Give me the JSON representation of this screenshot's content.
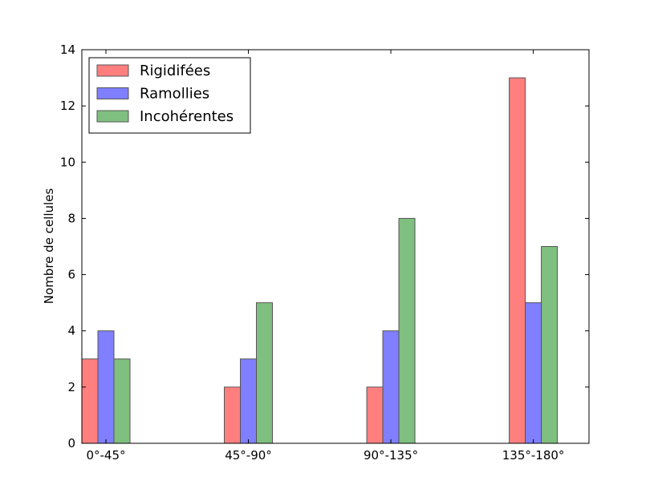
{
  "chart_data": {
    "type": "bar",
    "title": "",
    "xlabel": "",
    "ylabel": "Nombre de cellules",
    "ylim": [
      0,
      14
    ],
    "yticks": [
      0,
      2,
      4,
      6,
      8,
      10,
      12,
      14
    ],
    "categories": [
      "0°-45°",
      "45°-90°",
      "90°-135°",
      "135°-180°"
    ],
    "series": [
      {
        "name": "Rigidifées",
        "values": [
          3,
          2,
          2,
          13
        ],
        "color": "#ff7f7f"
      },
      {
        "name": "Ramollies",
        "values": [
          4,
          3,
          4,
          5
        ],
        "color": "#7f7fff"
      },
      {
        "name": "Incohérentes",
        "values": [
          3,
          5,
          8,
          7
        ],
        "color": "#7fbf7f"
      }
    ],
    "legend_position": "top-left",
    "grid": false
  }
}
